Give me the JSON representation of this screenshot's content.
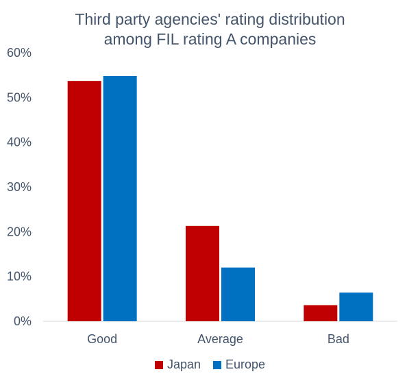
{
  "chart_data": {
    "type": "bar",
    "title_lines": [
      "Third party agencies' rating distribution",
      "among FIL rating A companies"
    ],
    "categories": [
      "Good",
      "Average",
      "Bad"
    ],
    "series": [
      {
        "name": "Japan",
        "values": [
          53.7,
          21.3,
          3.6
        ],
        "color": "#c00000"
      },
      {
        "name": "Europe",
        "values": [
          54.8,
          12.0,
          6.4
        ],
        "color": "#0070c0"
      }
    ],
    "ylim": [
      0,
      60
    ],
    "yticks": [
      "0%",
      "10%",
      "20%",
      "30%",
      "40%",
      "50%",
      "60%"
    ],
    "ytick_values": [
      0,
      10,
      20,
      30,
      40,
      50,
      60
    ],
    "legend_position": "bottom"
  }
}
